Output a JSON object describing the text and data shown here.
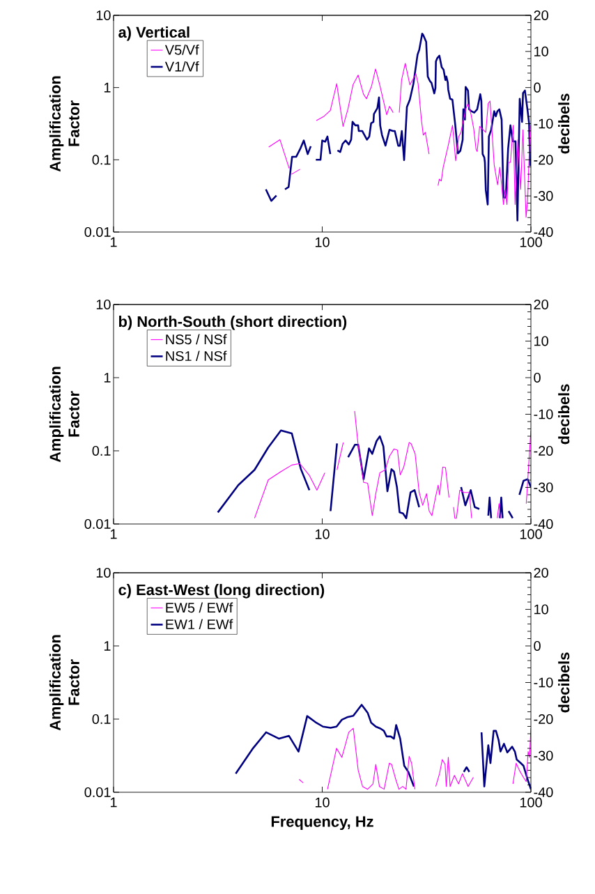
{
  "chart_data": [
    {
      "type": "line",
      "title": "a) Vertical",
      "ylabel": "Amplification Factor",
      "y2label": "decibels",
      "log": "xy",
      "legend": "top left",
      "xlim": [
        1,
        100
      ],
      "xticks": [
        1,
        10,
        100
      ],
      "ylim": [
        0.01,
        10
      ],
      "yticks": [
        0.01,
        0.1,
        1,
        10
      ],
      "y2lim": [
        -40,
        20
      ],
      "y2ticks": [
        -40,
        -30,
        -20,
        -10,
        0,
        10,
        20
      ],
      "series": [
        {
          "name": "V5/Vf",
          "color": "#ff00ff",
          "x": [
            5.54,
            6.27,
            6.94,
            7.0,
            7.12,
            7.83,
            8.5,
            9.37,
            10.19,
            10.93,
            11.73,
            12.58,
            13.27,
            14.04,
            14.86,
            15.76,
            16.29,
            17.24,
            18.01,
            18.86,
            20.37,
            21.0,
            21.88,
            22.6,
            23.4,
            24.0,
            25.0,
            26.3,
            28.1,
            28.8,
            29.9,
            30.5,
            31.2,
            32.5,
            34,
            35.9,
            36.4,
            37.2,
            38.0,
            40.2,
            41.4,
            42.1,
            43.6,
            45.1,
            46.2,
            48.7,
            49.9,
            51.6,
            53.2,
            54.6,
            55.3,
            56.8,
            60.8,
            62.4,
            63.7,
            66.7,
            69.2,
            71.0,
            73.9,
            75.2,
            76.8,
            78.2,
            79.8,
            82.3,
            84.0,
            86.6,
            89.3,
            91.6,
            94.8,
            96.5,
            98.5,
            99.4
          ],
          "values": [
            0.15,
            0.19,
            0.076,
            null,
            0.063,
            0.074,
            null,
            0.35,
            0.4,
            0.48,
            1.13,
            0.29,
            0.5,
            1.09,
            1.49,
            0.81,
            0.7,
            1.05,
            1.81,
            1.09,
            0.42,
            0.55,
            0.45,
            null,
            0.45,
            1.27,
            2.16,
            1.09,
            1.55,
            1.13,
            0.35,
            0.22,
            0.24,
            0.12,
            null,
            0.044,
            0.054,
            0.051,
            0.079,
            0.16,
            0.24,
            0.3,
            0.097,
            0.21,
            0.24,
            0.5,
            0.6,
            0.43,
            0.27,
            0.14,
            0.13,
            0.29,
            0.24,
            0.6,
            0.65,
            0.085,
            0.045,
            0.079,
            0.024,
            0.038,
            0.024,
            0.092,
            0.092,
            0.3,
            0.024,
            0.19,
            0.039,
            0.26,
            0.016,
            0.028,
            0.17,
            0.3
          ]
        },
        {
          "name": "V1/Vf",
          "color": "#000080",
          "x": [
            5.37,
            5.7,
            6.03,
            6.3,
            6.63,
            6.9,
            7.17,
            7.5,
            7.83,
            8.16,
            8.52,
            8.81,
            9.1,
            9.32,
            9.81,
            10.0,
            10.33,
            10.59,
            10.93,
            11.4,
            11.83,
            12.2,
            12.52,
            12.94,
            13.41,
            13.76,
            13.97,
            14.41,
            14.86,
            14.97,
            15.56,
            16.38,
            16.81,
            17.15,
            17.6,
            17.69,
            18.38,
            18.71,
            18.96,
            19.34,
            20.1,
            21.0,
            21.83,
            22.27,
            23.14,
            23.57,
            24.06,
            24.69,
            25.46,
            26.3,
            27.35,
            28.63,
            29.16,
            30.14,
            30.45,
            31.49,
            32.05,
            32.87,
            33.39,
            34.43,
            34.88,
            35.06,
            35.61,
            36.44,
            37.38,
            38.16,
            38.94,
            39.35,
            39.96,
            40.16,
            41.0,
            42.06,
            43.37,
            44.73,
            45.9,
            47.1,
            47.45,
            48.3,
            48.67,
            49.94,
            50.57,
            51.9,
            53.5,
            55.3,
            56.0,
            57.2,
            57.9,
            58.7,
            59.8,
            60.2,
            60.8,
            62.1,
            62.9,
            64.5,
            66.7,
            67.9,
            69.1,
            70.6,
            72.4,
            73.9,
            75.8,
            77.8,
            79.8,
            81.9,
            84.4,
            86.2,
            88.4,
            90.7,
            91.7,
            93.6,
            96.5,
            98.0,
            99.2
          ],
          "values": [
            0.039,
            0.027,
            0.032,
            null,
            0.039,
            0.042,
            0.11,
            0.11,
            0.14,
            0.185,
            0.12,
            0.154,
            null,
            0.1,
            0.1,
            0.185,
            0.178,
            0.21,
            0.12,
            null,
            0.135,
            0.128,
            0.166,
            0.185,
            0.163,
            0.19,
            0.335,
            0.3,
            0.3,
            0.25,
            0.25,
            0.19,
            0.21,
            0.32,
            0.335,
            0.43,
            0.52,
            0.73,
            0.3,
            0.22,
            0.157,
            0.26,
            0.25,
            0.25,
            0.156,
            0.156,
            0.25,
            0.099,
            0.54,
            0.68,
            1.13,
            2.86,
            3.32,
            5.57,
            5.37,
            4.3,
            1.42,
            1.22,
            1.16,
            0.83,
            0.98,
            2.29,
            2.56,
            2.76,
            1.91,
            1.77,
            1.27,
            1.42,
            1.18,
            0.94,
            0.7,
            0.68,
            0.31,
            0.123,
            0.133,
            0.19,
            0.5,
            0.36,
            1.02,
            0.91,
            0.5,
            0.47,
            0.45,
            0.5,
            0.6,
            0.81,
            0.65,
            0.12,
            0.108,
            0.092,
            0.038,
            0.024,
            0.21,
            0.26,
            0.47,
            0.4,
            0.47,
            0.5,
            0.36,
            0.03,
            0.03,
            0.143,
            0.3,
            0.18,
            0.18,
            0.0144,
            0.7,
            0.335,
            0.84,
            0.91,
            0.47,
            0.32,
            0.082
          ]
        }
      ]
    },
    {
      "type": "line",
      "title": "b) North-South (short direction)",
      "ylabel": "Amplification Factor",
      "y2label": "decibels",
      "log": "xy",
      "legend": "top left",
      "xlim": [
        1,
        100
      ],
      "xticks": [
        1,
        10,
        100
      ],
      "ylim": [
        0.01,
        10
      ],
      "yticks": [
        0.01,
        0.1,
        1,
        10
      ],
      "y2lim": [
        -40,
        20
      ],
      "y2ticks": [
        -40,
        -30,
        -20,
        -10,
        0,
        10,
        20
      ],
      "series": [
        {
          "name": "NS5 / NSf",
          "color": "#ff00ff",
          "x": [
            4.74,
            5.51,
            6.34,
            7.15,
            7.81,
            8.68,
            9.43,
            10.29,
            11.0,
            11.77,
            12.61,
            13.5,
            14.3,
            14.87,
            15.79,
            16.51,
            17.37,
            18.06,
            18.88,
            20.05,
            20.97,
            22.07,
            22.94,
            23.64,
            24.58,
            26.09,
            26.65,
            27.87,
            29.14,
            30.3,
            31.6,
            32.55,
            33.54,
            34.88,
            35.95,
            36.47,
            37.81,
            38.97,
            40.5,
            41.5,
            42.6,
            43.2,
            44,
            45.6,
            47.7,
            50.7,
            52,
            60,
            69,
            70.4,
            71.5,
            85,
            95.0,
            100
          ],
          "values": [
            0.012,
            0.04,
            0.052,
            0.064,
            0.067,
            0.046,
            0.029,
            0.05,
            null,
            0.055,
            0.13,
            null,
            0.35,
            0.118,
            0.037,
            0.036,
            0.013,
            0.026,
            0.05,
            0.055,
            0.084,
            0.106,
            0.102,
            0.047,
            0.06,
            0.13,
            0.125,
            0.091,
            0.027,
            0.018,
            0.026,
            0.015,
            0.013,
            0.023,
            0.034,
            0.025,
            0.06,
            0.059,
            0.023,
            null,
            0.017,
            0.012,
            0.012,
            0.029,
            0.027,
            0.027,
            0.012,
            null,
            0.012,
            0.019,
            0.012,
            null,
            0.019,
            0.19
          ]
        },
        {
          "name": "NS1 / NSf",
          "color": "#000080",
          "x": [
            3.16,
            3.96,
            4.74,
            5.51,
            6.34,
            7.15,
            7.89,
            8.68,
            9.8,
            10.96,
            11.77,
            12.5,
            13.31,
            14.34,
            14.87,
            15.79,
            16.75,
            17.37,
            18.21,
            18.88,
            19.64,
            20.53,
            21.47,
            22.07,
            22.8,
            23.49,
            24.36,
            25.26,
            26.49,
            27.7,
            29.14,
            38,
            46.3,
            48.5,
            51.5,
            53.8,
            56.6,
            60,
            62.5,
            63.4,
            64.5,
            68,
            71,
            72.1,
            73.2,
            75,
            78.2,
            81.8,
            85,
            88.1,
            92.2,
            96.4,
            100
          ],
          "values": [
            0.0144,
            0.034,
            0.055,
            0.111,
            0.19,
            0.173,
            0.057,
            0.029,
            null,
            0.015,
            0.126,
            null,
            0.082,
            0.121,
            0.121,
            0.041,
            0.108,
            0.091,
            0.136,
            0.158,
            0.115,
            0.028,
            0.056,
            0.052,
            0.032,
            0.0144,
            0.014,
            0.012,
            0.027,
            0.029,
            0.017,
            null,
            0.032,
            0.018,
            0.029,
            0.017,
            0.016,
            null,
            0.013,
            0.023,
            0.012,
            null,
            0.012,
            0.023,
            0.012,
            null,
            0.015,
            0.012,
            null,
            0.025,
            0.039,
            0.041,
            0.032
          ]
        }
      ]
    },
    {
      "type": "line",
      "title": "c) East-West (long direction)",
      "xlabel": "Frequency, Hz",
      "ylabel": "Amplification Factor",
      "y2label": "decibels",
      "log": "xy",
      "legend": "top left",
      "xlim": [
        1,
        100
      ],
      "xticks": [
        1,
        10,
        100
      ],
      "ylim": [
        0.01,
        10
      ],
      "yticks": [
        0.01,
        0.1,
        1,
        10
      ],
      "y2lim": [
        -40,
        20
      ],
      "y2ticks": [
        -40,
        -30,
        -20,
        -10,
        0,
        10,
        20
      ],
      "series": [
        {
          "name": "EW5 / EWf",
          "color": "#ff00ff",
          "x": [
            7.75,
            8.1,
            9,
            10.6,
            11.71,
            12.42,
            13.4,
            14.09,
            14.87,
            15.6,
            16.5,
            17.5,
            18.06,
            18.8,
            19.8,
            20.97,
            21.5,
            22.5,
            23.3,
            24.3,
            25.2,
            26.1,
            26.8,
            27.8,
            31,
            35,
            36.5,
            37.6,
            38.8,
            39.3,
            40.2,
            41,
            43,
            45,
            47,
            50,
            53,
            70,
            82,
            85,
            88,
            92,
            95,
            97,
            98.5,
            100
          ],
          "values": [
            0.015,
            0.0135,
            null,
            0.011,
            0.04,
            0.03,
            0.066,
            0.075,
            0.02,
            0.012,
            0.011,
            0.013,
            0.024,
            0.012,
            0.011,
            0.025,
            0.024,
            0.015,
            0.011,
            0.012,
            0.011,
            0.031,
            0.025,
            0.011,
            null,
            0.012,
            0.018,
            0.028,
            0.024,
            0.012,
            0.03,
            0.012,
            0.017,
            0.013,
            0.018,
            0.012,
            0.016,
            null,
            0.013,
            0.025,
            0.02,
            0.016,
            0.014,
            0.036,
            0.03,
            0.075
          ]
        },
        {
          "name": "EW1 / EWf",
          "color": "#000080",
          "x": [
            3.85,
            4.63,
            5.38,
            6.21,
            6.93,
            7.7,
            8.47,
            9.27,
            10.08,
            10.96,
            11.71,
            12.42,
            13.27,
            14.09,
            15.45,
            16.51,
            17.17,
            18.06,
            19.06,
            19.75,
            20.35,
            21.29,
            22.07,
            22.61,
            23.64,
            24.72,
            25.86,
            27.5,
            40,
            47.7,
            49.2,
            50.7,
            55,
            58.0,
            59.8,
            62.5,
            64.0,
            66.3,
            68.0,
            70.0,
            71.5,
            74.3,
            77.1,
            81.3,
            83.8,
            85.5,
            89.5,
            92.2,
            96.4,
            100
          ],
          "values": [
            0.018,
            0.039,
            0.066,
            0.054,
            0.059,
            0.036,
            0.11,
            0.091,
            0.079,
            0.076,
            0.079,
            0.098,
            0.107,
            0.111,
            0.157,
            0.122,
            0.089,
            0.079,
            0.074,
            0.069,
            0.058,
            0.058,
            0.054,
            0.083,
            0.054,
            0.023,
            0.019,
            0.012,
            null,
            0.019,
            0.022,
            0.019,
            null,
            0.066,
            0.012,
            0.044,
            0.025,
            0.069,
            0.069,
            0.052,
            0.036,
            0.046,
            0.035,
            0.042,
            0.036,
            0.028,
            0.025,
            0.023,
            0.015,
            0.011
          ]
        }
      ]
    }
  ]
}
